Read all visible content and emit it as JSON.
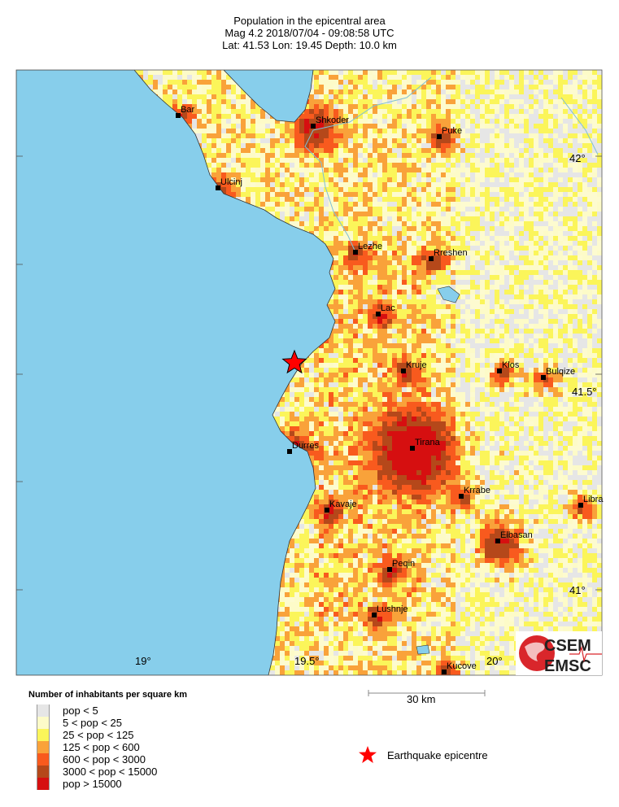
{
  "header": {
    "title": "Population in the epicentral area",
    "event_line": "Mag 4.2  2018/07/04 - 09:08:58 UTC",
    "location_line": "Lat: 41.53    Lon:  19.45     Depth:  10.0 km"
  },
  "map": {
    "sea_color": "#87ceeb",
    "longitude_labels": [
      "19°",
      "19.5°",
      "20°"
    ],
    "latitude_labels": [
      "42°",
      "41.5°",
      "41°"
    ],
    "cities": [
      {
        "name": "Bar"
      },
      {
        "name": "Shkoder"
      },
      {
        "name": "Puke"
      },
      {
        "name": "Ulcinj"
      },
      {
        "name": "Lezhe"
      },
      {
        "name": "Rreshen"
      },
      {
        "name": "Lac"
      },
      {
        "name": "Kruje"
      },
      {
        "name": "Klos"
      },
      {
        "name": "Bulqize"
      },
      {
        "name": "Durres"
      },
      {
        "name": "Tirana"
      },
      {
        "name": "Krrabe"
      },
      {
        "name": "Kavaje"
      },
      {
        "name": "Elbasan"
      },
      {
        "name": "Libra"
      },
      {
        "name": "Peqin"
      },
      {
        "name": "Lushnje"
      },
      {
        "name": "Kucove"
      }
    ],
    "epicentre": {
      "lat": 41.53,
      "lon": 19.45,
      "icon": "star-icon",
      "color": "#ff0000"
    },
    "logo": {
      "top": "CSEM",
      "bottom": "EMSC"
    }
  },
  "scale": {
    "label": "30 km"
  },
  "legend": {
    "title": "Number of inhabitants per square km",
    "items": [
      {
        "label": "pop < 5",
        "color": "#e6e6e6"
      },
      {
        "label": "5 < pop < 25",
        "color": "#fdfbc8"
      },
      {
        "label": "25 < pop < 125",
        "color": "#fbf55a"
      },
      {
        "label": "125 < pop < 600",
        "color": "#f9a23a"
      },
      {
        "label": "600 < pop < 3000",
        "color": "#f85a1e"
      },
      {
        "label": "3000 < pop < 15000",
        "color": "#b5481a"
      },
      {
        "label": "pop > 15000",
        "color": "#d60f10"
      }
    ],
    "epicentre_label": "Earthquake epicentre"
  }
}
